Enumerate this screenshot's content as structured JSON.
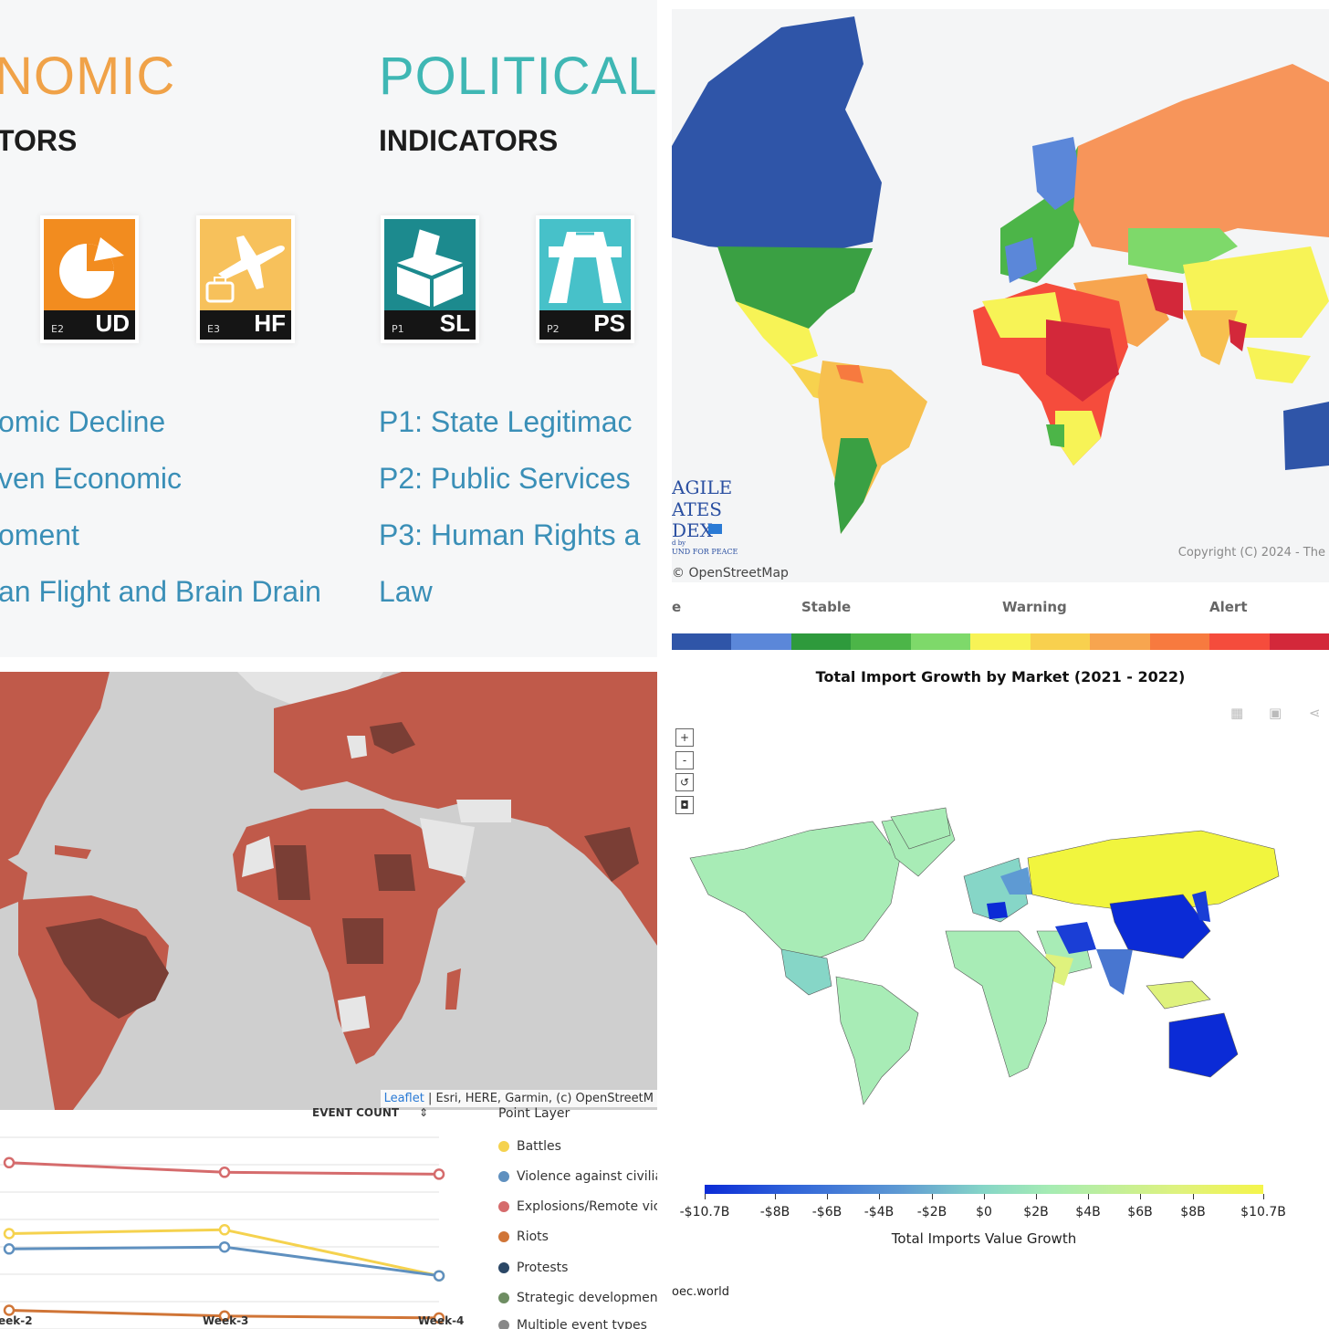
{
  "panel_indicators": {
    "economic_title": "NOMIC",
    "economic_subtitle": "TORS",
    "political_title": "POLITICAL",
    "political_subtitle": "INDICATORS",
    "colors": {
      "economic": "#f0a248",
      "political": "#3fb7b4"
    },
    "tiles": [
      {
        "code": "E2",
        "abbr": "UD",
        "icon": "pie-chart-icon",
        "color": "#f28c1f"
      },
      {
        "code": "E3",
        "abbr": "HF",
        "icon": "airplane-luggage-icon",
        "color": "#f7c15b"
      },
      {
        "code": "P1",
        "abbr": "SL",
        "icon": "ballot-box-icon",
        "color": "#1c8a8e"
      },
      {
        "code": "P2",
        "abbr": "PS",
        "icon": "highway-icon",
        "color": "#47c1c9"
      }
    ],
    "economic_lines": [
      "omic Decline",
      "ven Economic",
      "oment",
      "an Flight and Brain Drain"
    ],
    "political_lines": [
      "P1: State Legitimac",
      "P2: Public Services",
      "P3: Human Rights a",
      "Law"
    ]
  },
  "panel_fsi": {
    "logo_lines": [
      "AGILE",
      "ATES",
      "DEX"
    ],
    "logo_small1": "d by",
    "logo_small2": "UND FOR PEACE",
    "copyright": "Copyright (C) 2024 - The",
    "osm": "© OpenStreetMap",
    "legend_labels": [
      "e",
      "Stable",
      "Warning",
      "Alert"
    ],
    "legend_colors": [
      "#2f55a8",
      "#5b87d9",
      "#2e9a3c",
      "#4cb548",
      "#7ed96a",
      "#f7f356",
      "#f8d04e",
      "#f7a54f",
      "#f77a3f",
      "#f54c3c",
      "#d3283a"
    ]
  },
  "panel_acled": {
    "attribution_link": "Leaflet",
    "attribution_rest": " | Esri, HERE, Garmin, (c) OpenStreetM",
    "event_count_label": "EVENT COUNT",
    "sort_icon": "⇕",
    "legend_title": "Point Layer",
    "legend": [
      {
        "name": "Battles",
        "color": "#f5d24e"
      },
      {
        "name": "Violence against civiliar",
        "color": "#5f90bf"
      },
      {
        "name": "Explosions/Remote vic",
        "color": "#d56b6c"
      },
      {
        "name": "Riots",
        "color": "#d07537"
      },
      {
        "name": "Protests",
        "color": "#2b4766"
      },
      {
        "name": "Strategic development",
        "color": "#6e8d62"
      },
      {
        "name": "Multiple event types",
        "color": "#888888"
      }
    ],
    "weeks": [
      "eek-2",
      "Week-3",
      "Week-4"
    ]
  },
  "panel_oec": {
    "title": "Total Import Growth by Market (2021 - 2022)",
    "toolbar": [
      "+",
      "-",
      "↺",
      "◘"
    ],
    "top_icons": [
      "table-icon",
      "image-icon",
      "share-icon"
    ],
    "colorbar_labels": [
      "-$10.7B",
      "-$8B",
      "-$6B",
      "-$4B",
      "-$2B",
      "$0",
      "$2B",
      "$4B",
      "$6B",
      "$8B",
      "$10.7B"
    ],
    "colorbar_title": "Total Imports Value Growth",
    "source": "oec.world"
  },
  "chart_data": {
    "type": "line",
    "x": [
      "Week-2",
      "Week-3",
      "Week-4"
    ],
    "series": [
      {
        "name": "Explosions/Remote vic",
        "color": "#d56b6c",
        "values": [
          0.82,
          0.77,
          0.76
        ]
      },
      {
        "name": "Battles",
        "color": "#f5d24e",
        "values": [
          0.45,
          0.47,
          0.23
        ]
      },
      {
        "name": "Violence against civiliar",
        "color": "#5f90bf",
        "values": [
          0.37,
          0.38,
          0.23
        ]
      },
      {
        "name": "Riots",
        "color": "#d07537",
        "values": [
          0.05,
          0.02,
          0.01
        ]
      }
    ],
    "ylim": [
      0,
      1
    ],
    "grid": true
  }
}
